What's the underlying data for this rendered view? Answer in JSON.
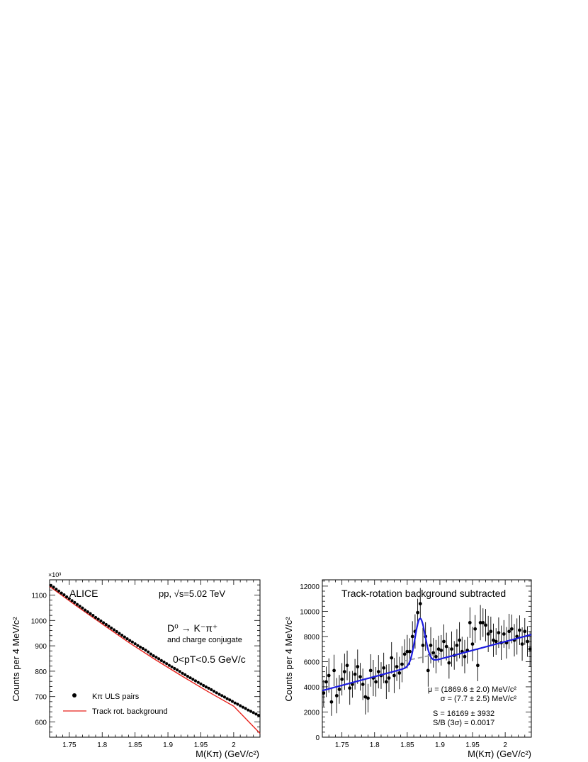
{
  "chart_data": [
    {
      "type": "scatter",
      "ylabel": "Counts per 4 MeV/c²",
      "xlabel": "M(Kπ) (GeV/c²)",
      "y_multiplier": "×10³",
      "xlim": [
        1.72,
        2.04
      ],
      "ylim": [
        540,
        1160
      ],
      "xticks": [
        1.75,
        1.8,
        1.85,
        1.9,
        1.95,
        2.0
      ],
      "xtick_labels": [
        "1.75",
        "1.8",
        "1.85",
        "1.9",
        "1.95",
        "2"
      ],
      "yticks": [
        600,
        700,
        800,
        900,
        1000,
        1100
      ],
      "ytick_labels": [
        "600",
        "700",
        "800",
        "900",
        "1000",
        "1100"
      ],
      "texts": {
        "experiment": "ALICE",
        "system": "pp, √s=5.02 TeV",
        "decay": "D⁰ → K⁻π⁺",
        "conjugate": "and charge conjugate",
        "pt_range": "0<pT<0.5 GeV/c"
      },
      "legend_position": "bottom-left",
      "series": [
        {
          "name": "Kπ ULS pairs",
          "kind": "points",
          "color": "#000000",
          "x": [
            1.722,
            1.726,
            1.73,
            1.734,
            1.738,
            1.742,
            1.746,
            1.75,
            1.754,
            1.758,
            1.762,
            1.766,
            1.77,
            1.774,
            1.778,
            1.782,
            1.786,
            1.79,
            1.794,
            1.798,
            1.802,
            1.806,
            1.81,
            1.814,
            1.818,
            1.822,
            1.826,
            1.83,
            1.834,
            1.838,
            1.842,
            1.846,
            1.85,
            1.854,
            1.858,
            1.862,
            1.866,
            1.87,
            1.874,
            1.878,
            1.882,
            1.886,
            1.89,
            1.894,
            1.898,
            1.902,
            1.906,
            1.91,
            1.914,
            1.918,
            1.922,
            1.926,
            1.93,
            1.934,
            1.938,
            1.942,
            1.946,
            1.95,
            1.954,
            1.958,
            1.962,
            1.966,
            1.97,
            1.974,
            1.978,
            1.982,
            1.986,
            1.99,
            1.994,
            1.998,
            2.002,
            2.006,
            2.01,
            2.014,
            2.018,
            2.022,
            2.026,
            2.03,
            2.034,
            2.038
          ],
          "y": [
            1138,
            1131,
            1123,
            1116,
            1108,
            1101,
            1093,
            1086,
            1078,
            1071,
            1063,
            1056,
            1049,
            1041,
            1034,
            1027,
            1020,
            1012,
            1005,
            998,
            991,
            984,
            977,
            970,
            963,
            956,
            949,
            942,
            935,
            928,
            921,
            915,
            908,
            901,
            895,
            889,
            883,
            876,
            868,
            861,
            855,
            849,
            842,
            836,
            830,
            823,
            817,
            811,
            805,
            799,
            792,
            786,
            780,
            774,
            768,
            762,
            756,
            750,
            744,
            738,
            733,
            727,
            721,
            715,
            709,
            704,
            698,
            692,
            687,
            681,
            675,
            670,
            664,
            658,
            653,
            647,
            642,
            637,
            631,
            626
          ]
        },
        {
          "name": "Track rot. background",
          "kind": "line",
          "color": "#e8201a",
          "x": [
            1.72,
            1.76,
            1.8,
            1.84,
            1.88,
            1.92,
            1.96,
            2.0,
            2.04
          ],
          "y": [
            1134,
            1059,
            986,
            914,
            847,
            783,
            721,
            662,
            555
          ]
        }
      ]
    },
    {
      "type": "scatter",
      "title": "Track-rotation background subtracted",
      "ylabel": "Counts per 4 MeV/c²",
      "xlabel": "M(Kπ) (GeV/c²)",
      "xlim": [
        1.72,
        2.04
      ],
      "ylim": [
        0,
        12500
      ],
      "xticks": [
        1.75,
        1.8,
        1.85,
        1.9,
        1.95,
        2.0
      ],
      "xtick_labels": [
        "1.75",
        "1.8",
        "1.85",
        "1.9",
        "1.95",
        "2"
      ],
      "yticks": [
        0,
        2000,
        4000,
        6000,
        8000,
        10000,
        12000
      ],
      "ytick_labels": [
        "0",
        "2000",
        "4000",
        "6000",
        "8000",
        "10000",
        "12000"
      ],
      "texts": {
        "mu": "μ = (1869.6 ± 2.0) MeV/c²",
        "sigma": "σ = (7.7 ± 2.5) MeV/c²",
        "signal": "S = 16169 ± 3932",
        "sb": "S/B (3σ) = 0.0017"
      },
      "fit": {
        "mean": 1.8696,
        "sigma": 0.0077,
        "amplitude": 3650,
        "bkg_slope": [
          1.72,
          3700,
          2.04,
          8150
        ],
        "bkg_break": 1.85,
        "bkg_level_after": 6300,
        "color": "#1c1ce0"
      },
      "background_curve": {
        "color": "#a0a0a0",
        "style": "dashed",
        "x": [
          1.845,
          1.9
        ],
        "y": [
          6050,
          6650
        ]
      },
      "series": [
        {
          "name": "data",
          "kind": "points_with_errors",
          "color": "#000000",
          "x": [
            1.722,
            1.726,
            1.73,
            1.734,
            1.738,
            1.742,
            1.746,
            1.75,
            1.754,
            1.758,
            1.762,
            1.766,
            1.77,
            1.774,
            1.778,
            1.782,
            1.786,
            1.79,
            1.794,
            1.798,
            1.802,
            1.806,
            1.81,
            1.814,
            1.818,
            1.822,
            1.826,
            1.83,
            1.834,
            1.838,
            1.842,
            1.846,
            1.85,
            1.854,
            1.858,
            1.862,
            1.866,
            1.87,
            1.874,
            1.878,
            1.882,
            1.886,
            1.89,
            1.894,
            1.898,
            1.902,
            1.906,
            1.91,
            1.914,
            1.918,
            1.922,
            1.926,
            1.93,
            1.934,
            1.938,
            1.942,
            1.946,
            1.95,
            1.954,
            1.958,
            1.962,
            1.966,
            1.97,
            1.974,
            1.978,
            1.982,
            1.986,
            1.99,
            1.994,
            1.998,
            2.002,
            2.006,
            2.01,
            2.014,
            2.018,
            2.022,
            2.026,
            2.03,
            2.034,
            2.038
          ],
          "y": [
            3500,
            4400,
            4900,
            2800,
            5300,
            3300,
            3800,
            4600,
            5200,
            5700,
            3900,
            4200,
            5000,
            5600,
            4800,
            4200,
            3200,
            3100,
            5300,
            4700,
            4400,
            5200,
            4900,
            5500,
            4400,
            4700,
            6300,
            4900,
            5600,
            5100,
            5800,
            6600,
            6800,
            6800,
            8000,
            8400,
            9900,
            10600,
            7300,
            8000,
            5300,
            7300,
            6700,
            6400,
            7000,
            6900,
            7600,
            7200,
            5900,
            7000,
            6500,
            7300,
            7700,
            6800,
            6400,
            6900,
            9100,
            7400,
            8600,
            5700,
            9100,
            9100,
            8900,
            8200,
            8400,
            7700,
            7600,
            8300,
            7500,
            8200,
            7500,
            8400,
            8600,
            7700,
            8000,
            8500,
            7400,
            8400,
            7600,
            7000
          ],
          "error": 1250
        }
      ]
    }
  ]
}
